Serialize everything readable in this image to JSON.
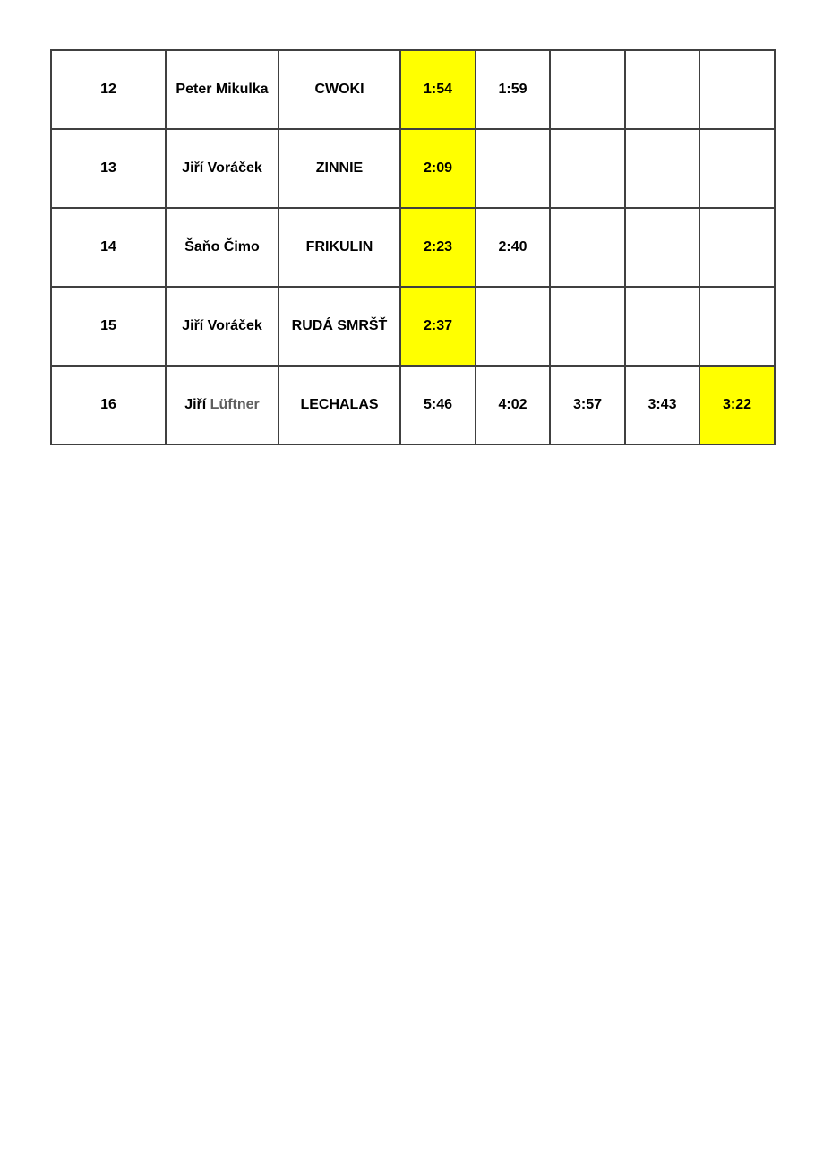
{
  "page": {
    "background_color": "#ffffff"
  },
  "table": {
    "description": "results-table-continuation",
    "highlight_color": "#ffff00",
    "border_color": "#404040",
    "text_color": "#000000",
    "muted_text_color": "#5e5e5e",
    "columns": [
      "entry-number",
      "skipper-name",
      "boat-name",
      "time-1",
      "time-2",
      "time-3",
      "time-4",
      "time-5"
    ],
    "rows": [
      {
        "number": "12",
        "skipper_parts": [
          {
            "text": "Peter Mikulka",
            "muted": false
          }
        ],
        "boat": "CWOKI",
        "times": [
          {
            "value": "1:54",
            "highlight": true
          },
          {
            "value": "1:59",
            "highlight": false
          },
          {
            "value": "",
            "highlight": false
          },
          {
            "value": "",
            "highlight": false
          },
          {
            "value": "",
            "highlight": false
          }
        ]
      },
      {
        "number": "13",
        "skipper_parts": [
          {
            "text": "Jiří Voráček",
            "muted": false
          }
        ],
        "boat": "ZINNIE",
        "times": [
          {
            "value": "2:09",
            "highlight": true
          },
          {
            "value": "",
            "highlight": false
          },
          {
            "value": "",
            "highlight": false
          },
          {
            "value": "",
            "highlight": false
          },
          {
            "value": "",
            "highlight": false
          }
        ]
      },
      {
        "number": "14",
        "skipper_parts": [
          {
            "text": "Šaňo Čimo",
            "muted": false
          }
        ],
        "boat": "FRIKULIN",
        "times": [
          {
            "value": "2:23",
            "highlight": true
          },
          {
            "value": "2:40",
            "highlight": false
          },
          {
            "value": "",
            "highlight": false
          },
          {
            "value": "",
            "highlight": false
          },
          {
            "value": "",
            "highlight": false
          }
        ]
      },
      {
        "number": "15",
        "skipper_parts": [
          {
            "text": "Jiří Voráček",
            "muted": false
          }
        ],
        "boat": "RUDÁ SMRŠŤ",
        "times": [
          {
            "value": "2:37",
            "highlight": true
          },
          {
            "value": "",
            "highlight": false
          },
          {
            "value": "",
            "highlight": false
          },
          {
            "value": "",
            "highlight": false
          },
          {
            "value": "",
            "highlight": false
          }
        ]
      },
      {
        "number": "16",
        "skipper_parts": [
          {
            "text": "Jiří ",
            "muted": false
          },
          {
            "text": "Lüftner",
            "muted": true
          }
        ],
        "boat": "LECHALAS",
        "times": [
          {
            "value": "5:46",
            "highlight": false
          },
          {
            "value": "4:02",
            "highlight": false
          },
          {
            "value": "3:57",
            "highlight": false
          },
          {
            "value": "3:43",
            "highlight": false
          },
          {
            "value": "3:22",
            "highlight": true
          }
        ]
      }
    ]
  }
}
